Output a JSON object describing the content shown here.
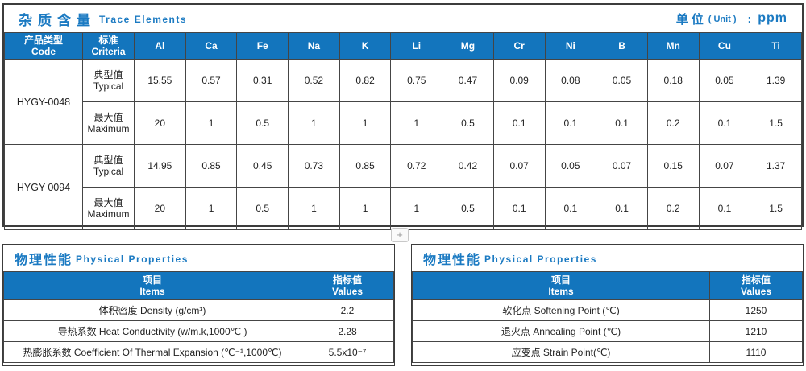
{
  "colors": {
    "header_blue": "#1375bd",
    "title_blue": "#1b7ac2",
    "border_dark": "#454545"
  },
  "plus_button": "+",
  "trace": {
    "title_cn": "杂质含量",
    "title_en": "Trace Elements",
    "unit_cn": "单位",
    "unit_paren": "( Unit )",
    "unit_sep": ":",
    "unit_value": "ppm",
    "header": {
      "code_cn": "产品类型",
      "code_en": "Code",
      "criteria_cn": "标准",
      "criteria_en": "Criteria"
    },
    "elements": [
      "Al",
      "Ca",
      "Fe",
      "Na",
      "K",
      "Li",
      "Mg",
      "Cr",
      "Ni",
      "B",
      "Mn",
      "Cu",
      "Ti"
    ],
    "row_labels": {
      "typical_cn": "典型值",
      "typical_en": "Typical",
      "maximum_cn": "最大值",
      "maximum_en": "Maximum"
    },
    "rows": [
      {
        "code": "HYGY-0048",
        "typical": [
          "15.55",
          "0.57",
          "0.31",
          "0.52",
          "0.82",
          "0.75",
          "0.47",
          "0.09",
          "0.08",
          "0.05",
          "0.18",
          "0.05",
          "1.39"
        ],
        "maximum": [
          "20",
          "1",
          "0.5",
          "1",
          "1",
          "1",
          "0.5",
          "0.1",
          "0.1",
          "0.1",
          "0.2",
          "0.1",
          "1.5"
        ]
      },
      {
        "code": "HYGY-0094",
        "typical": [
          "14.95",
          "0.85",
          "0.45",
          "0.73",
          "0.85",
          "0.72",
          "0.42",
          "0.07",
          "0.05",
          "0.07",
          "0.15",
          "0.07",
          "1.37"
        ],
        "maximum": [
          "20",
          "1",
          "0.5",
          "1",
          "1",
          "1",
          "0.5",
          "0.1",
          "0.1",
          "0.1",
          "0.2",
          "0.1",
          "1.5"
        ]
      }
    ]
  },
  "physical_left": {
    "title_cn": "物理性能",
    "title_en": "Physical Properties",
    "col_item_cn": "项目",
    "col_item_en": "Items",
    "col_value_cn": "指标值",
    "col_value_en": "Values",
    "rows": [
      {
        "item": "体积密度 Density (g/cm³)",
        "value": "2.2"
      },
      {
        "item": "导热系数 Heat Conductivity (w/m.k,1000℃ )",
        "value": "2.28"
      },
      {
        "item": "热膨胀系数 Coefficient Of Thermal Expansion (℃⁻¹,1000℃)",
        "value": "5.5x10⁻⁷"
      }
    ]
  },
  "physical_right": {
    "title_cn": "物理性能",
    "title_en": "Physical Properties",
    "col_item_cn": "项目",
    "col_item_en": "Items",
    "col_value_cn": "指标值",
    "col_value_en": "Values",
    "rows": [
      {
        "item": "软化点 Softening Point (℃)",
        "value": "1250"
      },
      {
        "item": "退火点 Annealing Point (℃)",
        "value": "1210"
      },
      {
        "item": "应变点 Strain Point(℃)",
        "value": "1110"
      }
    ]
  }
}
